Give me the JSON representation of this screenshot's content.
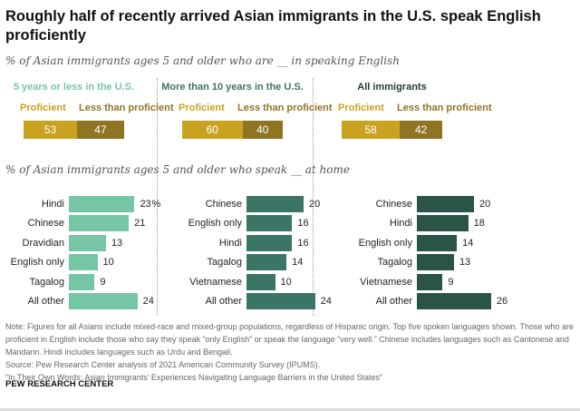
{
  "title": "Roughly half of recently arrived Asian immigrants in the U.S. speak English proficiently",
  "subtitle1": "% of Asian immigrants ages 5 and older who are __ in speaking English",
  "subtitle2": "% of Asian immigrants ages 5 and older who speak __ at home",
  "legend": {
    "proficient": "Proficient",
    "less": "Less than proficient"
  },
  "colors": {
    "gold": "#c9a21f",
    "darkgold": "#8f7522",
    "green1": "#76c6a6",
    "green2": "#3b7565",
    "green3": "#2b5448"
  },
  "chart_data": [
    {
      "type": "bar",
      "stacked": true,
      "title": "English proficiency",
      "panels": [
        {
          "name": "5 years or less in the U.S.",
          "proficient": 53,
          "less": 47
        },
        {
          "name": "More than 10 years in the U.S.",
          "proficient": 60,
          "less": 40
        },
        {
          "name": "All immigrants",
          "proficient": 58,
          "less": 42
        }
      ]
    },
    {
      "type": "bar",
      "orientation": "horizontal",
      "title": "Language spoken at home",
      "unit": "%",
      "panels": [
        {
          "name": "5 years or less in the U.S.",
          "categories": [
            "Hindi",
            "Chinese",
            "Dravidian",
            "English only",
            "Tagalog",
            "All other"
          ],
          "values": [
            23,
            21,
            13,
            10,
            9,
            24
          ]
        },
        {
          "name": "More than 10 years in the U.S.",
          "categories": [
            "Chinese",
            "English only",
            "Hindi",
            "Tagalog",
            "Vietnamese",
            "All other"
          ],
          "values": [
            20,
            16,
            16,
            14,
            10,
            24
          ]
        },
        {
          "name": "All immigrants",
          "categories": [
            "Chinese",
            "Hindi",
            "English only",
            "Tagalog",
            "Vietnamese",
            "All other"
          ],
          "values": [
            20,
            18,
            14,
            13,
            9,
            26
          ]
        }
      ]
    }
  ],
  "notes": [
    "Note: Figures for all Asians include mixed-race and mixed-group populations, regardless of Hispanic origin. Top five spoken languages shown. Those who are proficient in English include those who say they speak “only English” or speak the language “very well.” Chinese includes languages such as Cantonese and Mandarin. Hindi includes languages such as Urdu and Bengali.",
    "Source: Pew Research Center analysis of 2021 American Community Survey (IPUMS).",
    "“In Their Own Words: Asian Immigrants’ Experiences Navigating Language Barriers in the United States”"
  ],
  "footer": "PEW RESEARCH CENTER"
}
